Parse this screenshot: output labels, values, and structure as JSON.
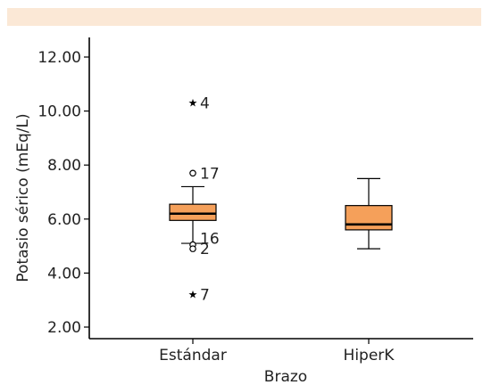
{
  "chart_data": {
    "type": "box",
    "xlabel": "Brazo",
    "ylabel": "Potasio sérico (mEq/L)",
    "ylim": [
      1.6,
      12.7
    ],
    "yticks": [
      "12.00",
      "10.00",
      "8.00",
      "6.00",
      "4.00",
      "2.00"
    ],
    "ytick_values": [
      12,
      10,
      8,
      6,
      4,
      2
    ],
    "categories": [
      "Estándar",
      "HiperK"
    ],
    "boxes": [
      {
        "category": "Estándar",
        "whisker_low": 5.1,
        "q1": 5.95,
        "median": 6.2,
        "q3": 6.55,
        "whisker_high": 7.2,
        "outliers": [
          {
            "value": 10.3,
            "label": "4",
            "marker": "star"
          },
          {
            "value": 7.7,
            "label": "17",
            "marker": "circle"
          },
          {
            "value": 5.05,
            "label": "16",
            "marker": "circle"
          },
          {
            "value": 4.9,
            "label": "2",
            "marker": "circle"
          },
          {
            "value": 3.2,
            "label": "7",
            "marker": "star"
          }
        ]
      },
      {
        "category": "HiperK",
        "whisker_low": 4.9,
        "q1": 5.6,
        "median": 5.8,
        "q3": 6.5,
        "whisker_high": 7.5,
        "outliers": []
      }
    ],
    "colors": {
      "box_fill": "#f5a05a",
      "box_stroke": "#000000",
      "top_band": "#fbe8d6"
    }
  }
}
